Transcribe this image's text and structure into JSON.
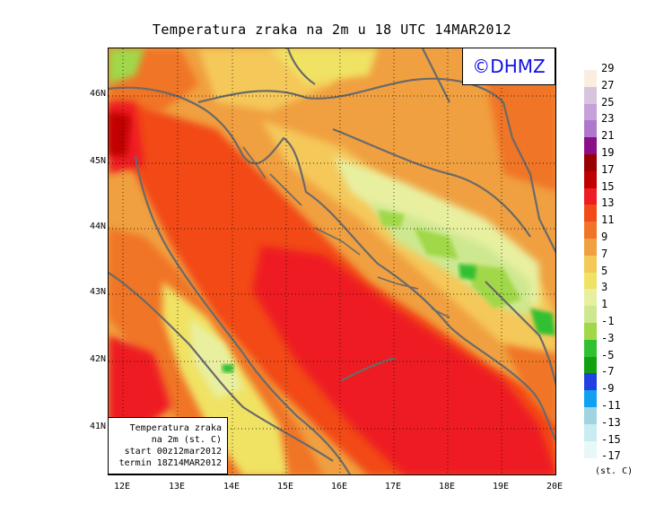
{
  "title": "Temperatura zraka na 2m u 18 UTC 14MAR2012",
  "logo": "©DHMZ",
  "info_box": {
    "line1": "Temperatura zraka",
    "line2": "na 2m (st. C)",
    "line3": "start 00z12mar2012",
    "line4": "termin 18Z14MAR2012"
  },
  "lat_labels": [
    "46N",
    "45N",
    "44N",
    "43N",
    "42N",
    "41N"
  ],
  "lon_labels": [
    "12E",
    "13E",
    "14E",
    "15E",
    "16E",
    "17E",
    "18E",
    "19E",
    "20E"
  ],
  "legend": {
    "units": "(st. C)",
    "labels": [
      "29",
      "27",
      "25",
      "23",
      "21",
      "19",
      "17",
      "15",
      "13",
      "11",
      "9",
      "7",
      "5",
      "3",
      "1",
      "-1",
      "-3",
      "-5",
      "-7",
      "-9",
      "-11",
      "-13",
      "-15",
      "-17"
    ],
    "colors": [
      "#fbeee0",
      "#d8c4de",
      "#c6a0d8",
      "#b078cc",
      "#8a0e8a",
      "#9a0000",
      "#c00000",
      "#ee1c24",
      "#f24a18",
      "#f07428",
      "#f0a040",
      "#f5c85a",
      "#f0e264",
      "#e8f0a0",
      "#cde890",
      "#a0d848",
      "#30c030",
      "#10a010",
      "#2040e0",
      "#10a0f0",
      "#a0d4e0",
      "#c8ecf0",
      "#e8f8f8"
    ]
  }
}
